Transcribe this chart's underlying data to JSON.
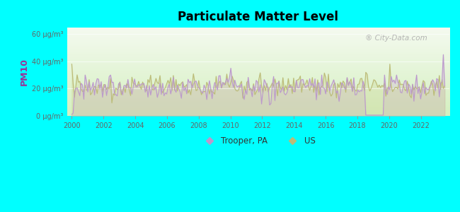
{
  "title": "Particulate Matter Level",
  "ylabel": "PM10",
  "background_color": "#00FFFF",
  "line_color_trooper": "#bb99cc",
  "line_color_us": "#bbbb77",
  "yticks": [
    0,
    20,
    40,
    60
  ],
  "ytick_labels": [
    "0 μg/m³",
    "20 μg/m³",
    "40 μg/m³",
    "60 μg/m³"
  ],
  "xtick_labels": [
    "2000",
    "2002",
    "2004",
    "2006",
    "2008",
    "2010",
    "2012",
    "2014",
    "2016",
    "2018",
    "2020",
    "2022"
  ],
  "ylim": [
    0,
    65
  ],
  "xlim_start": 1999.7,
  "xlim_end": 2023.8,
  "legend_labels": [
    "Trooper, PA",
    "US"
  ],
  "watermark": "® City-Data.com",
  "seed": 42
}
